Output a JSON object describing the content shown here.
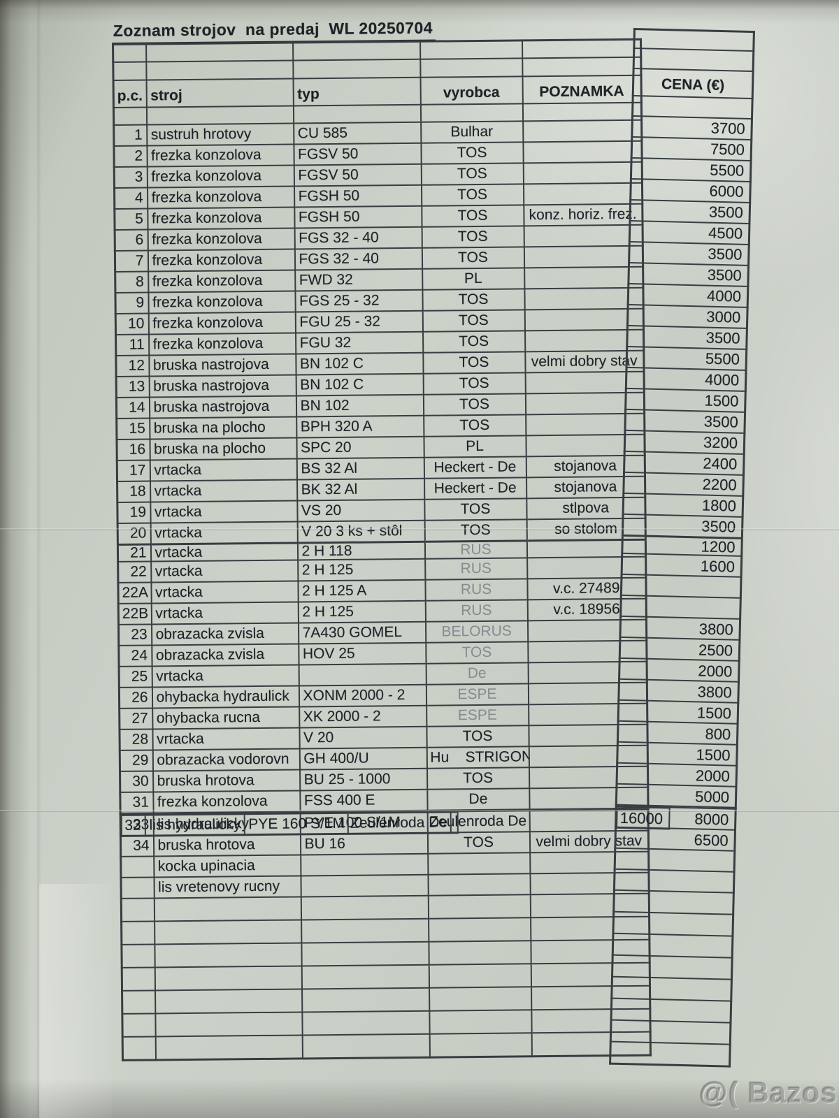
{
  "photo": {
    "watermark_text": "@( Bazos.pl"
  },
  "document": {
    "title": "Zoznam strojov  na predaj  WL 20250704",
    "columns": {
      "pc": "p.c.",
      "stroj": "stroj",
      "typ": "typ",
      "vyrobca": "vyrobca",
      "poznamka": "POZNAMKA",
      "cena": "CENA (€)"
    },
    "rows": [
      {
        "pc": "1",
        "stroj": "sustruh hrotovy",
        "typ": "CU 585",
        "vyrobca": "Bulhar",
        "poznamka": "",
        "cena": "3700"
      },
      {
        "pc": "2",
        "stroj": "frezka konzolova",
        "typ": "FGSV 50",
        "vyrobca": "TOS",
        "poznamka": "",
        "cena": "7500"
      },
      {
        "pc": "3",
        "stroj": "frezka konzolova",
        "typ": "FGSV 50",
        "vyrobca": "TOS",
        "poznamka": "",
        "cena": "5500"
      },
      {
        "pc": "4",
        "stroj": "frezka konzolova",
        "typ": "FGSH 50",
        "vyrobca": "TOS",
        "poznamka": "",
        "cena": "6000"
      },
      {
        "pc": "5",
        "stroj": "frezka konzolova",
        "typ": "FGSH 50",
        "vyrobca": "TOS",
        "poznamka": "konz. horiz. frez.",
        "cena": "3500"
      },
      {
        "pc": "6",
        "stroj": "frezka konzolova",
        "typ": "FGS 32 - 40",
        "vyrobca": "TOS",
        "poznamka": "",
        "cena": "4500"
      },
      {
        "pc": "7",
        "stroj": "frezka konzolova",
        "typ": "FGS 32 - 40",
        "vyrobca": "TOS",
        "poznamka": "",
        "cena": "3500"
      },
      {
        "pc": "8",
        "stroj": "frezka konzolova",
        "typ": "FWD 32",
        "vyrobca": "PL",
        "poznamka": "",
        "cena": "3500"
      },
      {
        "pc": "9",
        "stroj": "frezka konzolova",
        "typ": "FGS 25 - 32",
        "vyrobca": "TOS",
        "poznamka": "",
        "cena": "4000"
      },
      {
        "pc": "10",
        "stroj": "frezka konzolova",
        "typ": "FGU 25 - 32",
        "vyrobca": "TOS",
        "poznamka": "",
        "cena": "3000"
      },
      {
        "pc": "11",
        "stroj": "frezka konzolova",
        "typ": "FGU 32",
        "vyrobca": "TOS",
        "poznamka": "",
        "cena": "3500"
      },
      {
        "pc": "12",
        "stroj": "bruska nastrojova",
        "typ": "BN 102 C",
        "vyrobca": "TOS",
        "poznamka": "velmi dobry stav",
        "cena": "5500"
      },
      {
        "pc": "13",
        "stroj": "bruska nastrojova",
        "typ": "BN 102 C",
        "vyrobca": "TOS",
        "poznamka": "",
        "cena": "4000"
      },
      {
        "pc": "14",
        "stroj": "bruska nastrojova",
        "typ": "BN 102",
        "vyrobca": "TOS",
        "poznamka": "",
        "cena": "1500"
      },
      {
        "pc": "15",
        "stroj": "bruska na plocho",
        "typ": "BPH 320 A",
        "vyrobca": "TOS",
        "poznamka": "",
        "cena": "3500"
      },
      {
        "pc": "16",
        "stroj": "bruska na plocho",
        "typ": "SPC 20",
        "vyrobca": "PL",
        "poznamka": "",
        "cena": "3200"
      },
      {
        "pc": "17",
        "stroj": "vrtacka",
        "typ": "BS 32 Al",
        "vyrobca": "Heckert - De",
        "poznamka": "stojanova",
        "cena": "2400"
      },
      {
        "pc": "18",
        "stroj": "vrtacka",
        "typ": "BK 32 Al",
        "vyrobca": "Heckert - De",
        "poznamka": "stojanova",
        "cena": "2200"
      },
      {
        "pc": "19",
        "stroj": "vrtacka",
        "typ": "VS 20",
        "vyrobca": "TOS",
        "poznamka": "stlpova",
        "cena": "1800"
      },
      {
        "pc": "20",
        "stroj": "vrtacka",
        "typ": "V 20 3 ks + stôl",
        "vyrobca": "TOS",
        "poznamka": "so stolom",
        "cena": "3500"
      },
      {
        "pc": "21",
        "stroj": "vrtacka",
        "typ": "2 H 118",
        "vyrobca": "RUS",
        "poznamka": "",
        "cena": "1200",
        "faded": true,
        "squeezed": true
      },
      {
        "pc": "22",
        "stroj": "vrtacka",
        "typ": "2 H 125",
        "vyrobca": "RUS",
        "poznamka": "",
        "cena": "1600",
        "faded": true
      },
      {
        "pc": "22A",
        "stroj": "vrtacka",
        "typ": "2 H 125 A",
        "vyrobca": "RUS",
        "poznamka": "v.c. 27489",
        "cena": "",
        "faded": true
      },
      {
        "pc": "22B",
        "stroj": "vrtacka",
        "typ": "2 H 125",
        "vyrobca": "RUS",
        "poznamka": "v.c. 18956",
        "cena": "",
        "faded": true
      },
      {
        "pc": "23",
        "stroj": "obrazacka zvisla",
        "typ": "7A430 GOMEL",
        "vyrobca": "BELORUS",
        "poznamka": "",
        "cena": "3800",
        "faded": true
      },
      {
        "pc": "24",
        "stroj": "obrazacka zvisla",
        "typ": "HOV 25",
        "vyrobca": "TOS",
        "poznamka": "",
        "cena": "2500",
        "faded": true
      },
      {
        "pc": "25",
        "stroj": "vrtacka",
        "typ": "",
        "vyrobca": "De",
        "poznamka": "",
        "cena": "2000",
        "faded": true
      },
      {
        "pc": "26",
        "stroj": "ohybacka hydraulick",
        "typ": "XONM 2000 - 2",
        "vyrobca": "ESPE",
        "poznamka": "",
        "cena": "3800",
        "faded": true
      },
      {
        "pc": "27",
        "stroj": "ohybacka rucna",
        "typ": "XK 2000 - 2",
        "vyrobca": "ESPE",
        "poznamka": "",
        "cena": "1500",
        "faded": true
      },
      {
        "pc": "28",
        "stroj": "vrtacka",
        "typ": "V 20",
        "vyrobca": "TOS",
        "poznamka": "",
        "cena": "800"
      },
      {
        "pc": "29",
        "stroj": "obrazacka vodorovn",
        "typ": "GH 400/U",
        "vyrobca": "Hu    STRIGON",
        "poznamka": "",
        "cena": "1500",
        "wide": true
      },
      {
        "pc": "30",
        "stroj": "bruska hrotova",
        "typ": "BU 25 - 1000",
        "vyrobca": "TOS",
        "poznamka": "",
        "cena": "2000"
      },
      {
        "pc": "31",
        "stroj": "frezka konzolova",
        "typ": "FSS 400 E",
        "vyrobca": "De",
        "poznamka": "",
        "cena": "5000"
      },
      {
        "pc": "32",
        "stroj": "lis hydraulicky",
        "typ": "PYE 160 S/1M",
        "vyrobca": "Zeulenroda De",
        "poznamka": "",
        "cena": "16000",
        "vleft": true,
        "seam": true
      },
      {
        "pc": "33",
        "stroj": "lis hydraulicky",
        "typ": "PYE 100 S/1M",
        "vyrobca": "Zeulenroda De",
        "poznamka": "",
        "cena": "8000",
        "vleft": true
      },
      {
        "pc": "34",
        "stroj": "bruska hrotova",
        "typ": "BU 16",
        "vyrobca": "TOS",
        "poznamka": "velmi dobry stav",
        "cena": "6500"
      },
      {
        "pc": "",
        "stroj": "kocka upinacia",
        "typ": "",
        "vyrobca": "",
        "poznamka": "",
        "cena": ""
      },
      {
        "pc": "",
        "stroj": "lis vretenovy rucny",
        "typ": "",
        "vyrobca": "",
        "poznamka": "",
        "cena": ""
      }
    ],
    "trailing_empty_rows_main": 7,
    "trailing_empty_rows_strip": 8,
    "colors": {
      "paper": "#ccd2c8",
      "ink": "#1c2226",
      "table_line": "#353e41",
      "faded_stamp_ink": "#848c90"
    }
  }
}
